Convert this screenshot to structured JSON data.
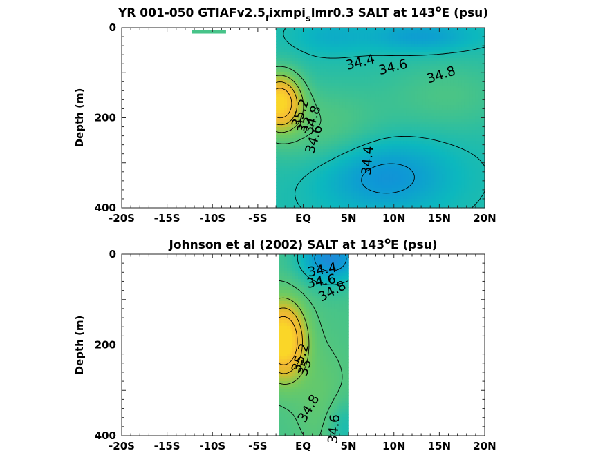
{
  "chart_data": [
    {
      "type": "heatmap",
      "title_parts": [
        "YR 001-050 GTIAFv2.5",
        "f",
        "ixmpi",
        "s",
        "lmr0.3 SALT at 143",
        "o",
        "E (psu)"
      ],
      "ylabel": "Depth (m)",
      "xlim": [
        -20,
        20
      ],
      "ylim": [
        0,
        400
      ],
      "y_reversed": true,
      "xticks": [
        -20,
        -15,
        -10,
        -5,
        0,
        5,
        10,
        15,
        20
      ],
      "xtick_labels": [
        "-20S",
        "-15S",
        "-10S",
        "-5S",
        "EQ",
        "5N",
        "10N",
        "15N",
        "20N"
      ],
      "yticks": [
        0,
        200,
        400
      ],
      "ytick_labels": [
        "0",
        "200",
        "400"
      ],
      "field_extent": {
        "x": [
          -3,
          20
        ],
        "depth": [
          0,
          400
        ]
      },
      "extra_patch": {
        "x": [
          -12.3,
          -8.5
        ],
        "depth": [
          0,
          10
        ],
        "value": 34.75
      },
      "contour_labels": [
        {
          "text": "34.4",
          "x": 6.3,
          "depth": 77,
          "angle": -14
        },
        {
          "text": "34.6",
          "x": 9.9,
          "depth": 88,
          "angle": -14
        },
        {
          "text": "34.8",
          "x": 15.2,
          "depth": 105,
          "angle": -18
        },
        {
          "text": "35.2",
          "x": -0.3,
          "depth": 190,
          "angle": -72
        },
        {
          "text": "35",
          "x": 0.1,
          "depth": 215,
          "angle": -72
        },
        {
          "text": "34.8",
          "x": 1.0,
          "depth": 205,
          "angle": -72
        },
        {
          "text": "34.6",
          "x": 1.2,
          "depth": 248,
          "angle": -72
        },
        {
          "text": "34.4",
          "x": 7.1,
          "depth": 295,
          "angle": -85
        }
      ]
    },
    {
      "type": "heatmap",
      "title_parts": [
        "Johnson et al (2002) SALT at 143",
        "o",
        "E (psu)"
      ],
      "ylabel": "Depth (m)",
      "xlim": [
        -20,
        20
      ],
      "ylim": [
        0,
        400
      ],
      "y_reversed": true,
      "xticks": [
        -20,
        -15,
        -10,
        -5,
        0,
        5,
        10,
        15,
        20
      ],
      "xtick_labels": [
        "-20S",
        "-15S",
        "-10S",
        "-5S",
        "EQ",
        "5N",
        "10N",
        "15N",
        "20N"
      ],
      "yticks": [
        0,
        200,
        400
      ],
      "ytick_labels": [
        "0",
        "200",
        "400"
      ],
      "field_extent": {
        "x": [
          -2.7,
          5
        ],
        "depth": [
          0,
          400
        ]
      },
      "contour_labels": [
        {
          "text": "34.4",
          "x": 2.1,
          "depth": 35,
          "angle": -10
        },
        {
          "text": "34.6",
          "x": 2.0,
          "depth": 60,
          "angle": -10
        },
        {
          "text": "34.8",
          "x": 3.2,
          "depth": 82,
          "angle": -28
        },
        {
          "text": "35.2",
          "x": -0.3,
          "depth": 228,
          "angle": -72
        },
        {
          "text": "35",
          "x": 0.2,
          "depth": 250,
          "angle": -72
        },
        {
          "text": "34.8",
          "x": 0.6,
          "depth": 340,
          "angle": -60
        },
        {
          "text": "34.6",
          "x": 3.4,
          "depth": 385,
          "angle": -85
        }
      ]
    }
  ]
}
